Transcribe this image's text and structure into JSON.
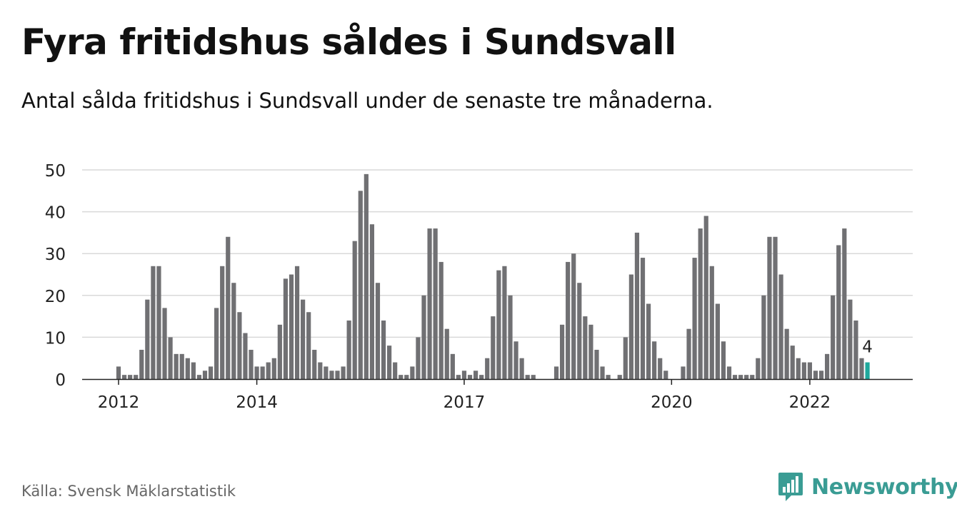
{
  "title": "Fyra fritidshus såldes i Sundsvall",
  "subtitle": "Antal sålda fritidshus i Sundsvall under de senaste tre månaderna.",
  "source": "Källa: Svensk Mäklarstatistik",
  "brand": {
    "name": "Newsworthy",
    "icon": "bar-chart-logo-icon",
    "color": "#3a9c94"
  },
  "chart_data": {
    "type": "bar",
    "start": "2012-01",
    "frequency": "monthly",
    "ylim": [
      0,
      50
    ],
    "yticks": [
      0,
      10,
      20,
      30,
      40,
      50
    ],
    "xticks": [
      {
        "label": "2012",
        "month": "2012-01"
      },
      {
        "label": "2014",
        "month": "2014-01"
      },
      {
        "label": "2017",
        "month": "2017-01"
      },
      {
        "label": "2020",
        "month": "2020-01"
      },
      {
        "label": "2022",
        "month": "2022-01"
      }
    ],
    "values": [
      3,
      1,
      1,
      1,
      7,
      19,
      27,
      27,
      17,
      10,
      6,
      6,
      5,
      4,
      1,
      2,
      3,
      17,
      27,
      34,
      23,
      16,
      11,
      7,
      3,
      3,
      4,
      5,
      13,
      24,
      25,
      27,
      19,
      16,
      7,
      4,
      3,
      2,
      2,
      3,
      14,
      33,
      45,
      49,
      37,
      23,
      14,
      8,
      4,
      1,
      1,
      3,
      10,
      20,
      36,
      36,
      28,
      12,
      6,
      1,
      2,
      1,
      2,
      1,
      5,
      15,
      26,
      27,
      20,
      9,
      5,
      1,
      1,
      0,
      0,
      0,
      3,
      13,
      28,
      30,
      23,
      15,
      13,
      7,
      3,
      1,
      0,
      1,
      10,
      25,
      35,
      29,
      18,
      9,
      5,
      2,
      0,
      0,
      3,
      12,
      29,
      36,
      39,
      27,
      18,
      9,
      3,
      1,
      1,
      1,
      1,
      5,
      20,
      34,
      34,
      25,
      12,
      8,
      5,
      4,
      4,
      2,
      2,
      6,
      20,
      32,
      36,
      19,
      14,
      5,
      4
    ],
    "bar_color": "#707073",
    "highlight_color": "#20a89c",
    "highlight_label": "4",
    "grid": true
  }
}
